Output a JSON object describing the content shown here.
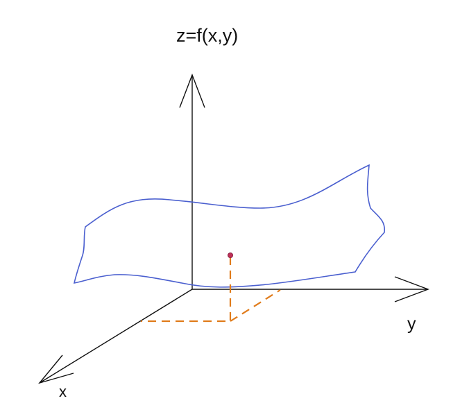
{
  "labels": {
    "z_axis": "z=f(x,y)",
    "y_axis": "y",
    "x_axis": "x"
  },
  "colors": {
    "axis": "#111111",
    "surface": "#4a5fcf",
    "projection": "#e07b1a",
    "point": "#c0305a"
  }
}
